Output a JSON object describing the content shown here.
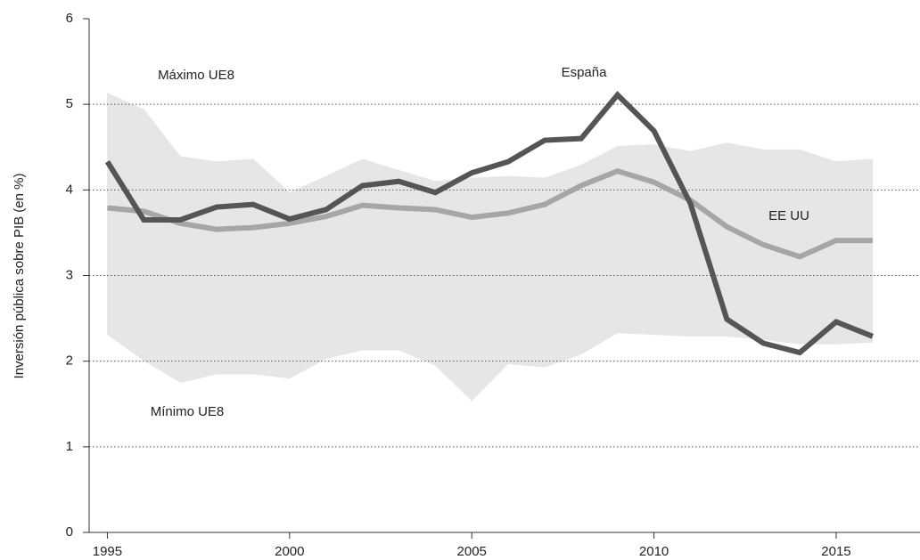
{
  "chart_data": {
    "type": "line",
    "y_label": "Inversión pública sobre PIB (en %)",
    "x": [
      1995,
      1996,
      1997,
      1998,
      1999,
      2000,
      2001,
      2002,
      2003,
      2004,
      2005,
      2006,
      2007,
      2008,
      2009,
      2010,
      2011,
      2012,
      2013,
      2014,
      2015,
      2016
    ],
    "band": {
      "color": "#e6e6e6",
      "upper": {
        "name": "Máximo UE8",
        "values": [
          5.13,
          4.94,
          4.39,
          4.33,
          4.36,
          3.97,
          4.16,
          4.36,
          4.23,
          4.1,
          4.14,
          4.16,
          4.14,
          4.29,
          4.51,
          4.53,
          4.45,
          4.55,
          4.47,
          4.47,
          4.33,
          4.36
        ]
      },
      "lower": {
        "name": "Mínimo UE8",
        "values": [
          2.31,
          2.01,
          1.75,
          1.85,
          1.85,
          1.8,
          2.03,
          2.13,
          2.13,
          1.95,
          1.54,
          1.97,
          1.93,
          2.08,
          2.33,
          2.31,
          2.29,
          2.29,
          2.25,
          2.2,
          2.2,
          2.22
        ]
      }
    },
    "series": [
      {
        "name": "EE UU",
        "color": "#a6a6a6",
        "values": [
          3.79,
          3.75,
          3.61,
          3.54,
          3.56,
          3.61,
          3.69,
          3.82,
          3.79,
          3.77,
          3.68,
          3.73,
          3.83,
          4.05,
          4.22,
          4.09,
          3.88,
          3.57,
          3.36,
          3.22,
          3.41,
          3.41
        ]
      },
      {
        "name": "España",
        "color": "#555555",
        "values": [
          4.33,
          3.65,
          3.65,
          3.8,
          3.83,
          3.66,
          3.77,
          4.05,
          4.1,
          3.97,
          4.2,
          4.33,
          4.58,
          4.6,
          5.11,
          4.69,
          3.84,
          2.49,
          2.21,
          2.1,
          2.46,
          2.29
        ]
      }
    ],
    "xlim": [
      1994.5,
      2017.3
    ],
    "xticks": [
      1995,
      2000,
      2005,
      2010,
      2015
    ],
    "ylim": [
      0,
      6
    ],
    "yticks": [
      0,
      1,
      2,
      3,
      4,
      5,
      6
    ],
    "grid": true
  }
}
